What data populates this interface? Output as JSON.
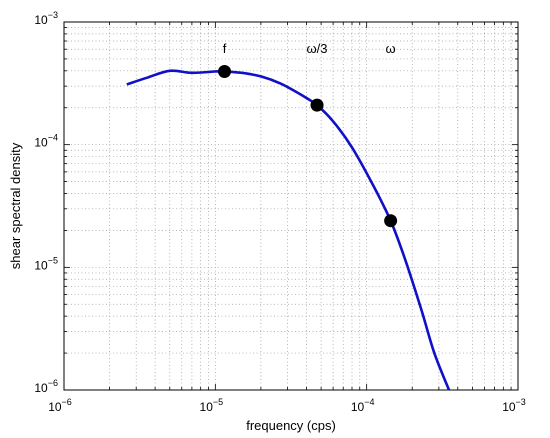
{
  "chart_data": {
    "type": "line",
    "xlabel": "frequency (cps)",
    "ylabel": "shear spectral density",
    "xscale": "log",
    "yscale": "log",
    "xlim": [
      1e-06,
      0.001
    ],
    "ylim": [
      1e-06,
      0.001
    ],
    "grid": true,
    "legend": "none",
    "line_color": "#1010c8",
    "x_ticks": [
      {
        "base": "10",
        "exp": "−6"
      },
      {
        "base": "10",
        "exp": "−5"
      },
      {
        "base": "10",
        "exp": "−4"
      },
      {
        "base": "10",
        "exp": "−3"
      }
    ],
    "y_ticks": [
      {
        "base": "10",
        "exp": "−6"
      },
      {
        "base": "10",
        "exp": "−5"
      },
      {
        "base": "10",
        "exp": "−4"
      },
      {
        "base": "10",
        "exp": "−3"
      }
    ],
    "series": [
      {
        "x": [
          2.6e-06,
          3.5e-06,
          5e-06,
          7e-06,
          1e-05,
          1.15e-05,
          1.5e-05,
          2e-05,
          2.7e-05,
          3.5e-05,
          4e-05,
          4.7e-05,
          6e-05,
          8e-05,
          0.00011,
          0.000144,
          0.00018,
          0.00023,
          0.00028,
          0.00035
        ],
        "y": [
          0.00031,
          0.00035,
          0.0004,
          0.000385,
          0.000395,
          0.000395,
          0.000385,
          0.00036,
          0.000315,
          0.000265,
          0.00024,
          0.00021,
          0.000155,
          9.5e-05,
          4.7e-05,
          2.4e-05,
          1.15e-05,
          4.5e-06,
          2e-06,
          1e-06
        ]
      }
    ],
    "markers": [
      {
        "x": 1.15e-05,
        "y": 0.000395
      },
      {
        "x": 4.7e-05,
        "y": 0.00021
      },
      {
        "x": 0.000144,
        "y": 2.4e-05
      }
    ],
    "annotations": [
      {
        "text": "f",
        "x": 1.15e-05,
        "y": 0.00056
      },
      {
        "text": "ω/3",
        "x": 4.7e-05,
        "y": 0.00056
      },
      {
        "text": "ω",
        "x": 0.000144,
        "y": 0.00056
      }
    ]
  }
}
